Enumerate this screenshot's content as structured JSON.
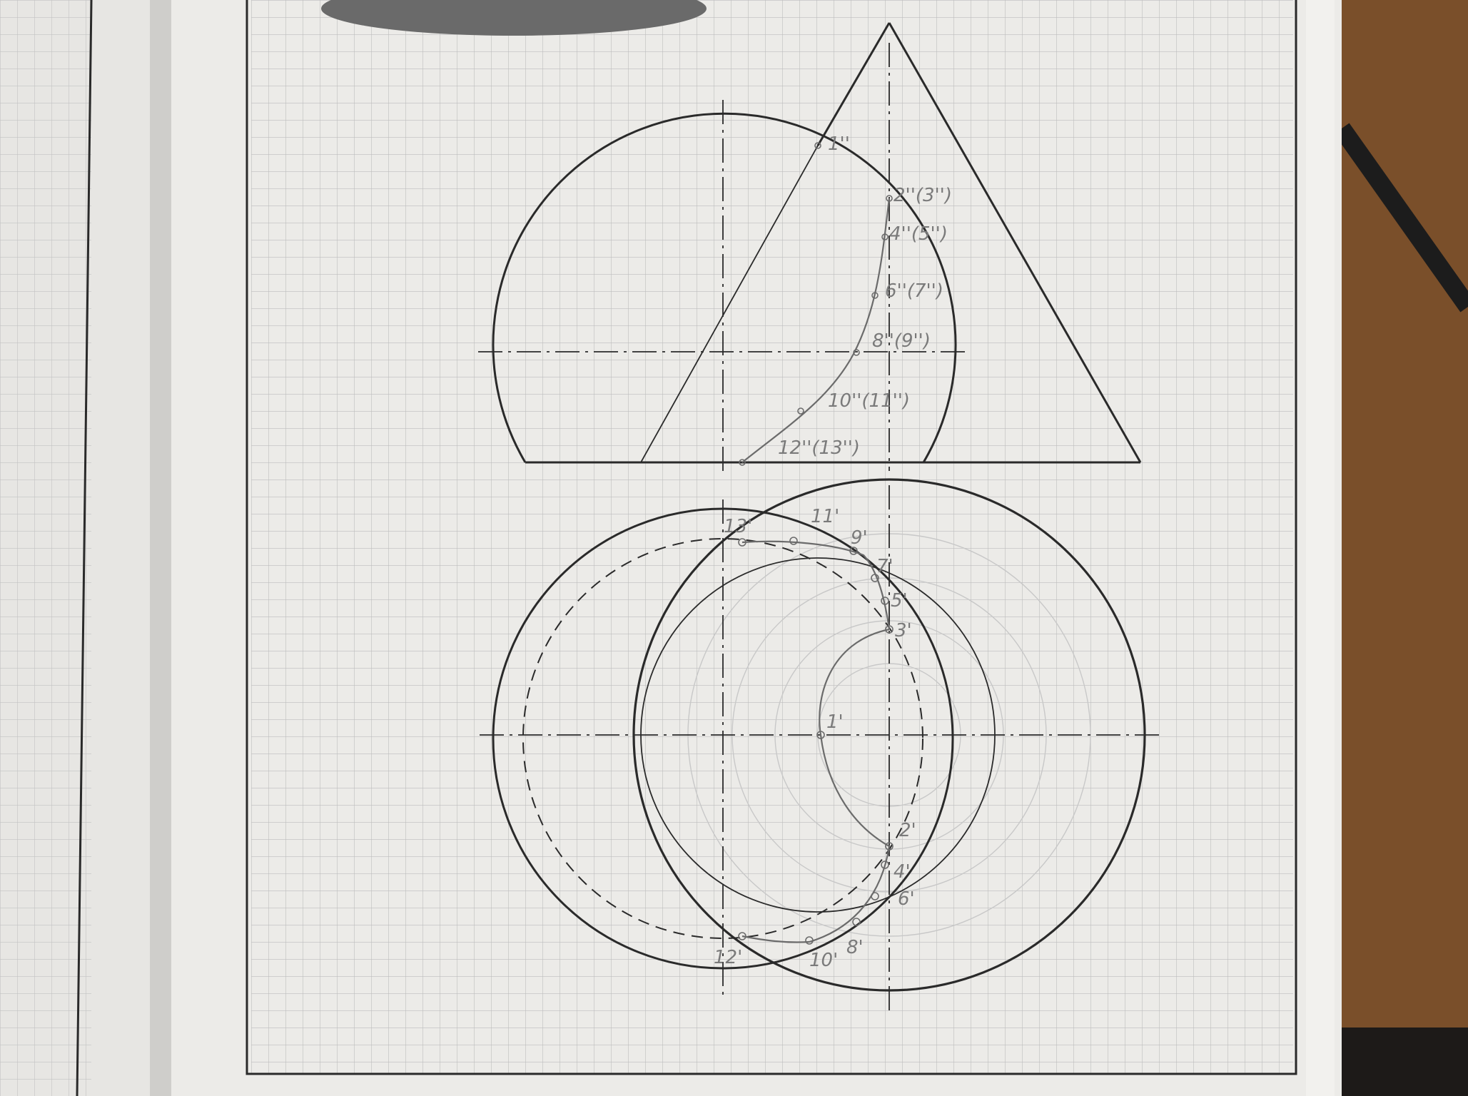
{
  "drawing": {
    "colors": {
      "paper": "#ecebe8",
      "grid": "#bdbdbd",
      "ink": "#2a2a2a",
      "pencil": "#8a8a8a",
      "desk": "#7a4f2a"
    },
    "front_view_labels": {
      "p1": "1''",
      "p2_3": "2''(3'')",
      "p4_5": "4''(5'')",
      "p6_7": "6''(7'')",
      "p8_9": "8''(9'')",
      "p10_11": "10''(11'')",
      "p12_13": "12''(13'')"
    },
    "top_view_labels": {
      "p1": "1'",
      "p2": "2'",
      "p3": "3'",
      "p4": "4'",
      "p5": "5'",
      "p6": "6'",
      "p7": "7'",
      "p8": "8'",
      "p9": "9'",
      "p10": "10'",
      "p11": "11'",
      "p12": "12'",
      "p13": "13'"
    }
  }
}
